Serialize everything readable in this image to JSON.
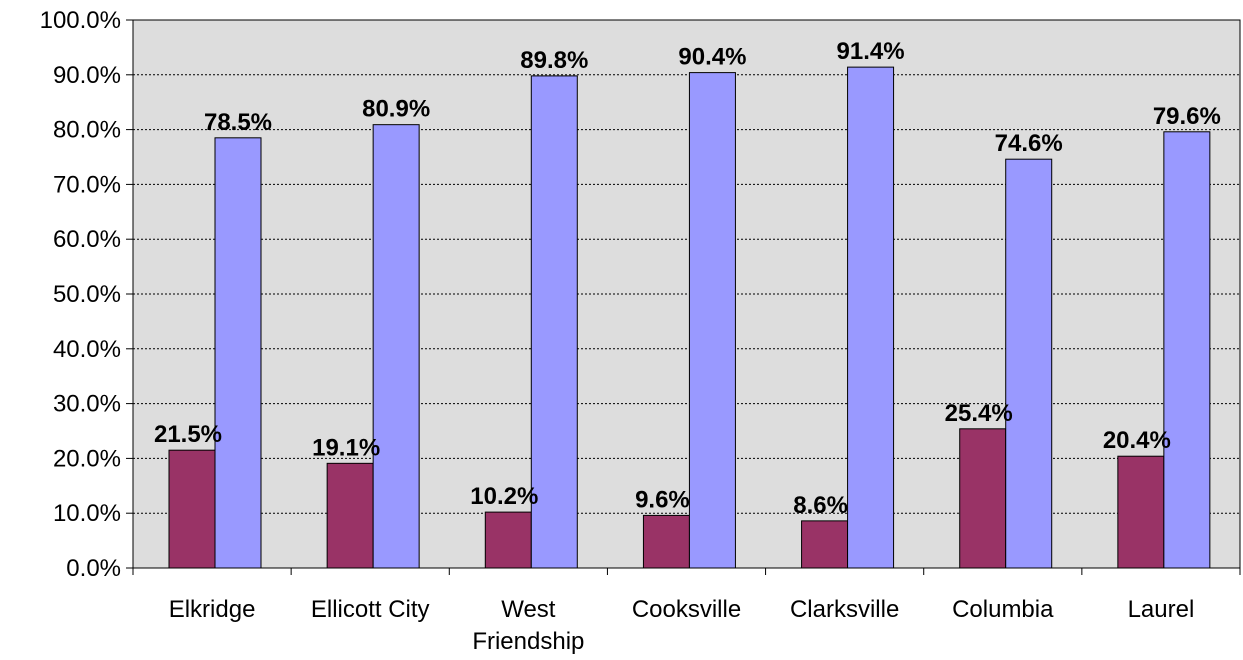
{
  "chart_data": {
    "type": "bar",
    "categories": [
      "Elkridge",
      "Ellicott City",
      "West Friendship",
      "Cooksville",
      "Clarksville",
      "Columbia",
      "Laurel"
    ],
    "category_lines": [
      [
        "Elkridge"
      ],
      [
        "Ellicott City"
      ],
      [
        "West",
        "Friendship"
      ],
      [
        "Cooksville"
      ],
      [
        "Clarksville"
      ],
      [
        "Columbia"
      ],
      [
        "Laurel"
      ]
    ],
    "series": [
      {
        "values": [
          21.5,
          19.1,
          10.2,
          9.6,
          8.6,
          25.4,
          20.4
        ],
        "labels": [
          "21.5%",
          "19.1%",
          "10.2%",
          "9.6%",
          "8.6%",
          "25.4%",
          "20.4%"
        ],
        "color": "#993366"
      },
      {
        "values": [
          78.5,
          80.9,
          89.8,
          90.4,
          91.4,
          74.6,
          79.6
        ],
        "labels": [
          "78.5%",
          "80.9%",
          "89.8%",
          "90.4%",
          "91.4%",
          "74.6%",
          "79.6%"
        ],
        "color": "#9999ff"
      }
    ],
    "title": "",
    "xlabel": "",
    "ylabel": "",
    "ylim": [
      0,
      100
    ],
    "yticks": [
      0,
      10,
      20,
      30,
      40,
      50,
      60,
      70,
      80,
      90,
      100
    ],
    "ytick_labels": [
      "0.0%",
      "10.0%",
      "20.0%",
      "30.0%",
      "40.0%",
      "50.0%",
      "60.0%",
      "70.0%",
      "80.0%",
      "90.0%",
      "100.0%"
    ],
    "grid": true,
    "plot_background": "#dddddd",
    "legend": "none"
  }
}
